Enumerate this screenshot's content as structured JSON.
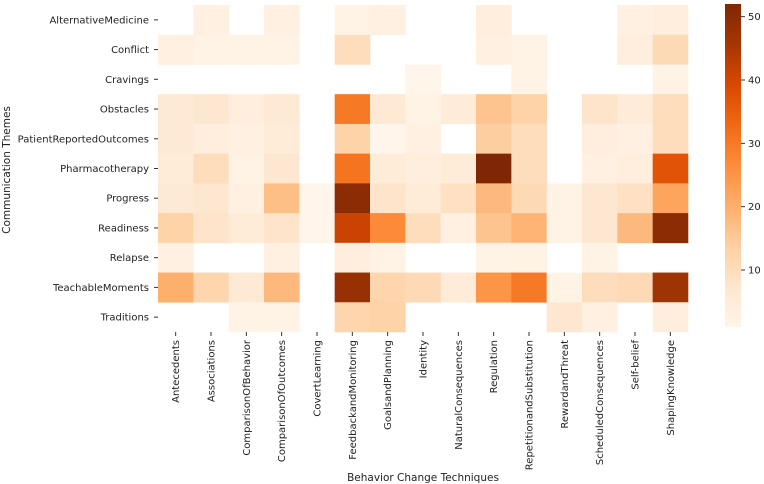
{
  "chart_data": {
    "type": "heatmap",
    "xlabel": "Behavior Change Techniques",
    "ylabel": "Communication Themes",
    "x_categories": [
      "Antecedents",
      "Associations",
      "ComparisonOfBehavior",
      "ComparisonOfOutcomes",
      "CovertLearning",
      "FeedbackandMonitoring",
      "GoalsandPlanning",
      "Identity",
      "NaturalConsequences",
      "Regulation",
      "RepetitionandSubstitution",
      "RewardandThreat",
      "ScheduledConsequences",
      "Self-belief",
      "ShapingKnowledge"
    ],
    "y_categories": [
      "AlternativeMedicine",
      "Conflict",
      "Cravings",
      "Obstacles",
      "PatientReportedOutcomes",
      "Pharmacotherapy",
      "Progress",
      "Readiness",
      "Relapse",
      "TeachableMoments",
      "Traditions"
    ],
    "values": [
      [
        0,
        3,
        0,
        3,
        0,
        2,
        3,
        0,
        0,
        4,
        0,
        0,
        0,
        3,
        4
      ],
      [
        3,
        2,
        2,
        2,
        0,
        10,
        0,
        0,
        0,
        3,
        2,
        0,
        0,
        4,
        11
      ],
      [
        0,
        0,
        0,
        0,
        0,
        0,
        0,
        1,
        0,
        0,
        2,
        0,
        0,
        0,
        2
      ],
      [
        6,
        7,
        4,
        6,
        0,
        30,
        6,
        2,
        5,
        16,
        13,
        0,
        8,
        5,
        10
      ],
      [
        6,
        4,
        3,
        5,
        0,
        13,
        1,
        3,
        0,
        14,
        10,
        0,
        4,
        3,
        10
      ],
      [
        5,
        10,
        2,
        7,
        0,
        31,
        5,
        4,
        5,
        52,
        10,
        0,
        3,
        4,
        37
      ],
      [
        6,
        7,
        3,
        17,
        1,
        50,
        8,
        5,
        9,
        18,
        11,
        2,
        7,
        9,
        22
      ],
      [
        13,
        8,
        5,
        8,
        1,
        41,
        27,
        10,
        3,
        16,
        19,
        2,
        7,
        18,
        50
      ],
      [
        3,
        0,
        0,
        3,
        0,
        4,
        2,
        0,
        0,
        2,
        2,
        0,
        2,
        0,
        0
      ],
      [
        20,
        12,
        6,
        18,
        0,
        48,
        12,
        11,
        5,
        25,
        30,
        2,
        10,
        11,
        47
      ],
      [
        0,
        0,
        2,
        2,
        0,
        12,
        13,
        0,
        0,
        0,
        0,
        7,
        3,
        0,
        4
      ]
    ],
    "colorbar": {
      "min": 1,
      "max": 52,
      "ticks": [
        10,
        20,
        30,
        40,
        50
      ]
    },
    "colormap": [
      "#fff5eb",
      "#fee6ce",
      "#fdd0a2",
      "#fdae6b",
      "#fd8d3c",
      "#f16913",
      "#d94801",
      "#a63603",
      "#7f2704"
    ],
    "grid": false,
    "legend": "colorbar-right"
  }
}
